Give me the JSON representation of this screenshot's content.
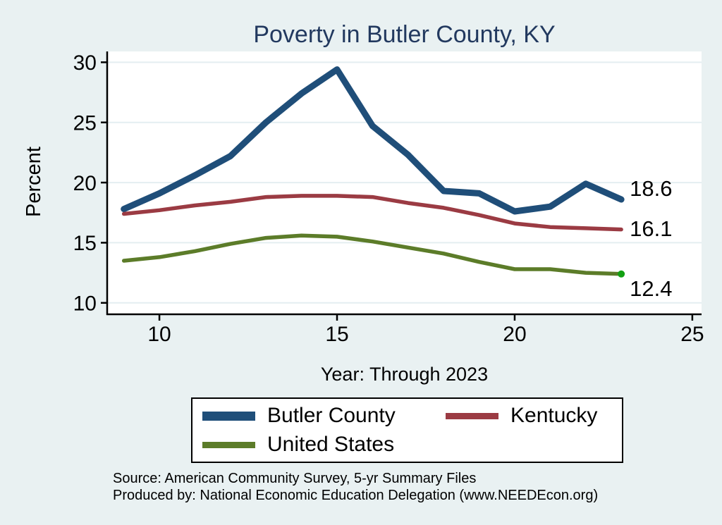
{
  "chart_data": {
    "type": "line",
    "title": "Poverty in Butler County, KY",
    "xlabel": "Year: Through 2023",
    "ylabel": "Percent",
    "x": [
      9,
      10,
      11,
      12,
      13,
      14,
      15,
      16,
      17,
      18,
      19,
      20,
      21,
      22,
      23
    ],
    "series": [
      {
        "name": "Butler County",
        "color": "#1f4e79",
        "line_width": 9,
        "values": [
          17.8,
          19.1,
          20.6,
          22.2,
          25.0,
          27.4,
          29.4,
          24.7,
          22.3,
          19.3,
          19.1,
          17.6,
          18.0,
          19.9,
          18.6
        ],
        "end_label": "18.6"
      },
      {
        "name": "Kentucky",
        "color": "#9b3b43",
        "line_width": 5.5,
        "values": [
          17.4,
          17.7,
          18.1,
          18.4,
          18.8,
          18.9,
          18.9,
          18.8,
          18.3,
          17.9,
          17.3,
          16.6,
          16.3,
          16.2,
          16.1
        ],
        "end_label": "16.1"
      },
      {
        "name": "United States",
        "color": "#5c7c29",
        "line_width": 5.5,
        "values": [
          13.5,
          13.8,
          14.3,
          14.9,
          15.4,
          15.6,
          15.5,
          15.1,
          14.6,
          14.1,
          13.4,
          12.8,
          12.8,
          12.5,
          12.4
        ],
        "end_label": "12.4",
        "end_marker_color": "#12a012"
      }
    ],
    "x_ticks": [
      10,
      15,
      20,
      25
    ],
    "y_ticks": [
      10,
      15,
      20,
      25,
      30
    ],
    "xlim": [
      8.53,
      25.26
    ],
    "ylim": [
      9.05,
      30.9
    ],
    "grid": true,
    "legend_position": "bottom"
  },
  "legend": {
    "rows": [
      [
        0,
        1
      ],
      [
        2
      ]
    ]
  },
  "footer": {
    "source_line": "Source: American Community Survey, 5-yr Summary Files",
    "produced_line": "Produced by: National Economic Education Delegation (www.NEEDEcon.org)"
  },
  "colors": {
    "page_background": "#e9f1f2",
    "plot_background": "#ffffff",
    "gridline": "#e4eef1",
    "axis": "#000000",
    "title_text": "#22395f",
    "label_text": "#000000"
  }
}
